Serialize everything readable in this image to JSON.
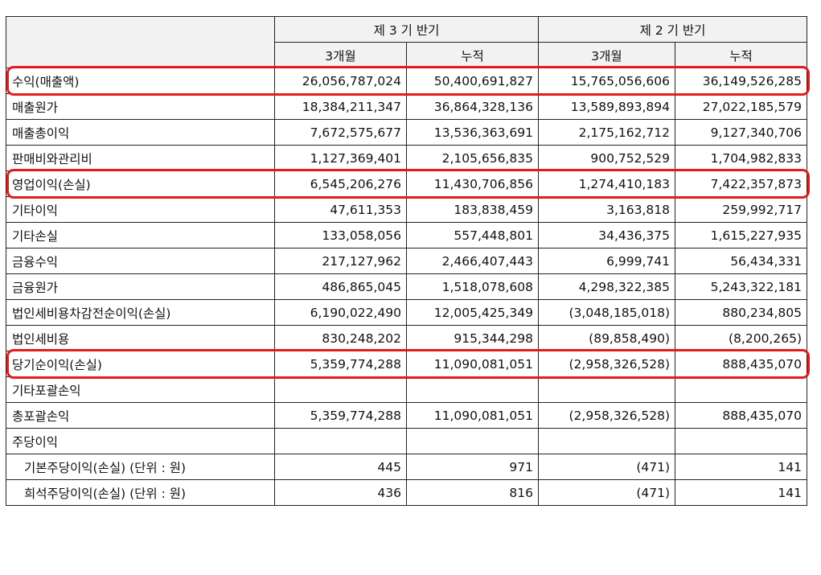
{
  "header": {
    "period_current": "제 3 기 반기",
    "period_prior": "제 2 기 반기",
    "sub": [
      "3개월",
      "누적",
      "3개월",
      "누적"
    ]
  },
  "rows": [
    {
      "label": "수익(매출액)",
      "values": [
        "26,056,787,024",
        "50,400,691,827",
        "15,765,056,606",
        "36,149,526,285"
      ],
      "highlight": true
    },
    {
      "label": "매출원가",
      "values": [
        "18,384,211,347",
        "36,864,328,136",
        "13,589,893,894",
        "27,022,185,579"
      ]
    },
    {
      "label": "매출총이익",
      "values": [
        "7,672,575,677",
        "13,536,363,691",
        "2,175,162,712",
        "9,127,340,706"
      ]
    },
    {
      "label": "판매비와관리비",
      "values": [
        "1,127,369,401",
        "2,105,656,835",
        "900,752,529",
        "1,704,982,833"
      ]
    },
    {
      "label": "영업이익(손실)",
      "values": [
        "6,545,206,276",
        "11,430,706,856",
        "1,274,410,183",
        "7,422,357,873"
      ],
      "highlight": true
    },
    {
      "label": "기타이익",
      "values": [
        "47,611,353",
        "183,838,459",
        "3,163,818",
        "259,992,717"
      ]
    },
    {
      "label": "기타손실",
      "values": [
        "133,058,056",
        "557,448,801",
        "34,436,375",
        "1,615,227,935"
      ]
    },
    {
      "label": "금융수익",
      "values": [
        "217,127,962",
        "2,466,407,443",
        "6,999,741",
        "56,434,331"
      ]
    },
    {
      "label": "금융원가",
      "values": [
        "486,865,045",
        "1,518,078,608",
        "4,298,322,385",
        "5,243,322,181"
      ]
    },
    {
      "label": "법인세비용차감전순이익(손실)",
      "values": [
        "6,190,022,490",
        "12,005,425,349",
        "(3,048,185,018)",
        "880,234,805"
      ]
    },
    {
      "label": "법인세비용",
      "values": [
        "830,248,202",
        "915,344,298",
        "(89,858,490)",
        "(8,200,265)"
      ]
    },
    {
      "label": "당기순이익(손실)",
      "values": [
        "5,359,774,288",
        "11,090,081,051",
        "(2,958,326,528)",
        "888,435,070"
      ],
      "highlight": true
    },
    {
      "label": "기타포괄손익",
      "values": [
        "",
        "",
        "",
        ""
      ]
    },
    {
      "label": "총포괄손익",
      "values": [
        "5,359,774,288",
        "11,090,081,051",
        "(2,958,326,528)",
        "888,435,070"
      ]
    },
    {
      "label": "주당이익",
      "values": [
        "",
        "",
        "",
        ""
      ]
    },
    {
      "label": "기본주당이익(손실) (단위 : 원)",
      "values": [
        "445",
        "971",
        "(471)",
        "141"
      ],
      "indent": true
    },
    {
      "label": "희석주당이익(손실) (단위 : 원)",
      "values": [
        "436",
        "816",
        "(471)",
        "141"
      ],
      "indent": true
    }
  ],
  "colors": {
    "highlight_border": "#e21c1c",
    "header_bg": "#f2f2f2"
  }
}
